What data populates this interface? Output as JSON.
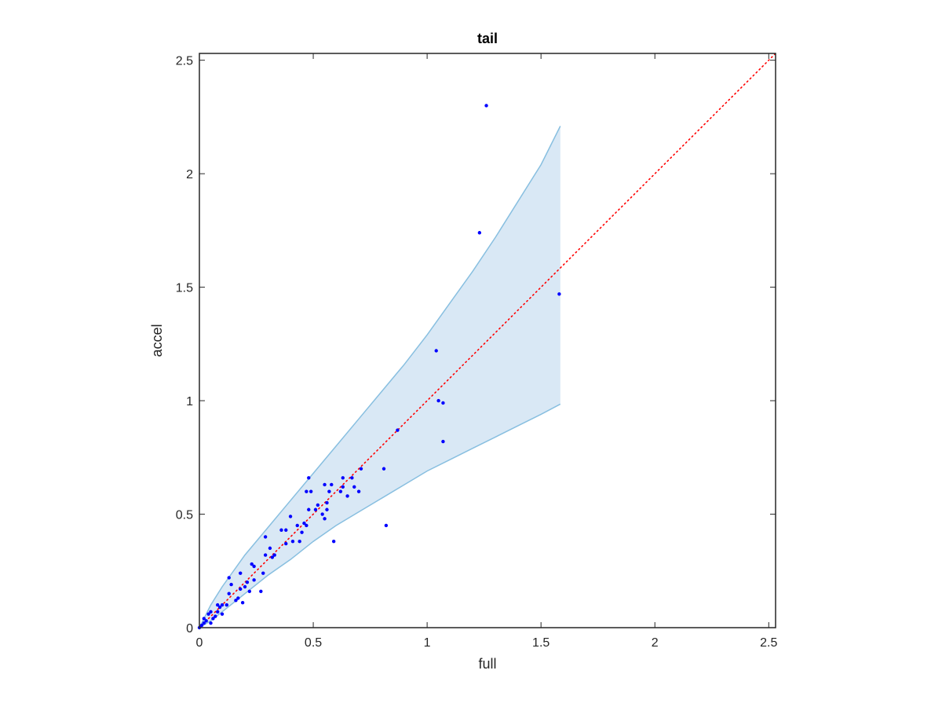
{
  "chart_data": {
    "type": "scatter",
    "title": "tail",
    "xlabel": "full",
    "ylabel": "accel",
    "xlim": [
      0,
      2.53
    ],
    "ylim": [
      0,
      2.53
    ],
    "xticks": [
      0,
      0.5,
      1,
      1.5,
      2,
      2.5
    ],
    "yticks": [
      0,
      0.5,
      1,
      1.5,
      2,
      2.5
    ],
    "xtick_labels": [
      "0",
      "0.5",
      "1",
      "1.5",
      "2",
      "2.5"
    ],
    "ytick_labels": [
      "0",
      "0.5",
      "1",
      "1.5",
      "2",
      "2.5"
    ],
    "grid": false,
    "colors": {
      "points": "#0000ff",
      "reference_line": "#ff0000",
      "band_fill": "#d9e8f5",
      "band_edge": "#88bfe0",
      "axes": "#262626"
    },
    "reference_line": {
      "style": "dotted",
      "x": [
        0,
        2.53
      ],
      "y": [
        0,
        2.53
      ]
    },
    "band": {
      "x": [
        0,
        0.05,
        0.1,
        0.2,
        0.3,
        0.4,
        0.5,
        0.6,
        0.7,
        0.8,
        0.9,
        1.0,
        1.1,
        1.2,
        1.3,
        1.4,
        1.5,
        1.585
      ],
      "upper": [
        0,
        0.1,
        0.18,
        0.32,
        0.44,
        0.56,
        0.68,
        0.8,
        0.92,
        1.04,
        1.16,
        1.29,
        1.43,
        1.57,
        1.72,
        1.88,
        2.04,
        2.21
      ],
      "lower": [
        0,
        0.03,
        0.07,
        0.15,
        0.23,
        0.3,
        0.38,
        0.45,
        0.51,
        0.57,
        0.63,
        0.69,
        0.74,
        0.79,
        0.84,
        0.89,
        0.94,
        0.985
      ]
    },
    "points": [
      {
        "x": 0.0,
        "y": 0.0
      },
      {
        "x": 0.01,
        "y": 0.01
      },
      {
        "x": 0.02,
        "y": 0.02
      },
      {
        "x": 0.02,
        "y": 0.04
      },
      {
        "x": 0.03,
        "y": 0.03
      },
      {
        "x": 0.04,
        "y": 0.06
      },
      {
        "x": 0.05,
        "y": 0.02
      },
      {
        "x": 0.05,
        "y": 0.07
      },
      {
        "x": 0.06,
        "y": 0.04
      },
      {
        "x": 0.07,
        "y": 0.05
      },
      {
        "x": 0.08,
        "y": 0.1
      },
      {
        "x": 0.08,
        "y": 0.07
      },
      {
        "x": 0.09,
        "y": 0.09
      },
      {
        "x": 0.1,
        "y": 0.1
      },
      {
        "x": 0.1,
        "y": 0.06
      },
      {
        "x": 0.12,
        "y": 0.1
      },
      {
        "x": 0.13,
        "y": 0.15
      },
      {
        "x": 0.13,
        "y": 0.22
      },
      {
        "x": 0.14,
        "y": 0.19
      },
      {
        "x": 0.16,
        "y": 0.12
      },
      {
        "x": 0.17,
        "y": 0.13
      },
      {
        "x": 0.18,
        "y": 0.17
      },
      {
        "x": 0.18,
        "y": 0.24
      },
      {
        "x": 0.19,
        "y": 0.11
      },
      {
        "x": 0.2,
        "y": 0.18
      },
      {
        "x": 0.21,
        "y": 0.2
      },
      {
        "x": 0.22,
        "y": 0.16
      },
      {
        "x": 0.23,
        "y": 0.28
      },
      {
        "x": 0.24,
        "y": 0.21
      },
      {
        "x": 0.24,
        "y": 0.27
      },
      {
        "x": 0.27,
        "y": 0.16
      },
      {
        "x": 0.28,
        "y": 0.24
      },
      {
        "x": 0.29,
        "y": 0.32
      },
      {
        "x": 0.29,
        "y": 0.4
      },
      {
        "x": 0.31,
        "y": 0.35
      },
      {
        "x": 0.32,
        "y": 0.31
      },
      {
        "x": 0.33,
        "y": 0.32
      },
      {
        "x": 0.36,
        "y": 0.43
      },
      {
        "x": 0.38,
        "y": 0.37
      },
      {
        "x": 0.38,
        "y": 0.43
      },
      {
        "x": 0.4,
        "y": 0.49
      },
      {
        "x": 0.41,
        "y": 0.38
      },
      {
        "x": 0.43,
        "y": 0.45
      },
      {
        "x": 0.44,
        "y": 0.38
      },
      {
        "x": 0.45,
        "y": 0.42
      },
      {
        "x": 0.46,
        "y": 0.46
      },
      {
        "x": 0.47,
        "y": 0.6
      },
      {
        "x": 0.47,
        "y": 0.45
      },
      {
        "x": 0.48,
        "y": 0.52
      },
      {
        "x": 0.49,
        "y": 0.6
      },
      {
        "x": 0.48,
        "y": 0.66
      },
      {
        "x": 0.51,
        "y": 0.52
      },
      {
        "x": 0.52,
        "y": 0.54
      },
      {
        "x": 0.54,
        "y": 0.5
      },
      {
        "x": 0.55,
        "y": 0.63
      },
      {
        "x": 0.55,
        "y": 0.48
      },
      {
        "x": 0.56,
        "y": 0.52
      },
      {
        "x": 0.56,
        "y": 0.55
      },
      {
        "x": 0.57,
        "y": 0.6
      },
      {
        "x": 0.58,
        "y": 0.63
      },
      {
        "x": 0.59,
        "y": 0.38
      },
      {
        "x": 0.62,
        "y": 0.6
      },
      {
        "x": 0.63,
        "y": 0.66
      },
      {
        "x": 0.63,
        "y": 0.62
      },
      {
        "x": 0.65,
        "y": 0.58
      },
      {
        "x": 0.67,
        "y": 0.66
      },
      {
        "x": 0.68,
        "y": 0.62
      },
      {
        "x": 0.7,
        "y": 0.6
      },
      {
        "x": 0.71,
        "y": 0.7
      },
      {
        "x": 0.81,
        "y": 0.7
      },
      {
        "x": 0.82,
        "y": 0.45
      },
      {
        "x": 0.87,
        "y": 0.87
      },
      {
        "x": 1.04,
        "y": 1.22
      },
      {
        "x": 1.05,
        "y": 1.0
      },
      {
        "x": 1.07,
        "y": 0.99
      },
      {
        "x": 1.07,
        "y": 0.82
      },
      {
        "x": 1.23,
        "y": 1.74
      },
      {
        "x": 1.26,
        "y": 2.3
      },
      {
        "x": 1.58,
        "y": 1.47
      }
    ]
  }
}
